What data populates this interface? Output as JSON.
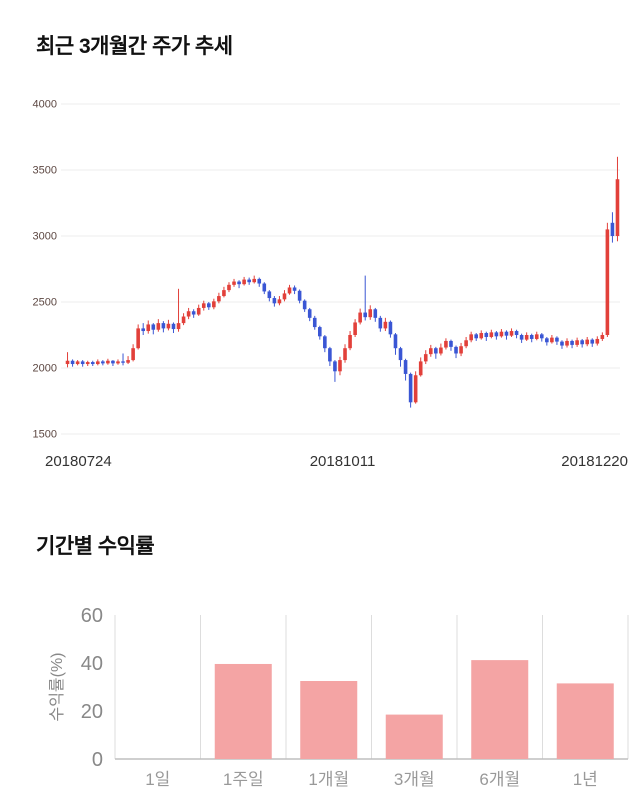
{
  "chart_data": [
    {
      "type": "candlestick",
      "title": "최근 3개월간 주가 추세",
      "ylim": [
        1500,
        4000
      ],
      "y_ticks": [
        4000,
        3500,
        3000,
        2500,
        2000,
        1500
      ],
      "x_labels": [
        "20180724",
        "20181011",
        "20181220"
      ],
      "grid": true,
      "up_color": "#e2403a",
      "down_color": "#3a56d4",
      "grid_color": "#ececec",
      "y_tick_color": "#5c4742",
      "x_label_color": "#333333",
      "candle_format": [
        "open",
        "close",
        "high",
        "low"
      ],
      "candles": [
        [
          2030,
          2055,
          2120,
          2005
        ],
        [
          2055,
          2030,
          2065,
          2010
        ],
        [
          2030,
          2050,
          2060,
          2020
        ],
        [
          2050,
          2030,
          2060,
          2010
        ],
        [
          2030,
          2045,
          2055,
          2015
        ],
        [
          2045,
          2030,
          2055,
          2015
        ],
        [
          2030,
          2050,
          2065,
          2020
        ],
        [
          2050,
          2035,
          2060,
          2020
        ],
        [
          2035,
          2055,
          2070,
          2025
        ],
        [
          2055,
          2035,
          2060,
          2015
        ],
        [
          2035,
          2050,
          2065,
          2025
        ],
        [
          2050,
          2040,
          2110,
          2020
        ],
        [
          2040,
          2060,
          2090,
          2030
        ],
        [
          2060,
          2150,
          2180,
          2050
        ],
        [
          2150,
          2300,
          2330,
          2140
        ],
        [
          2300,
          2280,
          2340,
          2250
        ],
        [
          2280,
          2330,
          2360,
          2260
        ],
        [
          2330,
          2290,
          2340,
          2255
        ],
        [
          2290,
          2340,
          2370,
          2275
        ],
        [
          2340,
          2300,
          2355,
          2270
        ],
        [
          2300,
          2335,
          2365,
          2285
        ],
        [
          2335,
          2295,
          2345,
          2265
        ],
        [
          2295,
          2340,
          2600,
          2275
        ],
        [
          2340,
          2390,
          2415,
          2325
        ],
        [
          2390,
          2430,
          2455,
          2370
        ],
        [
          2430,
          2405,
          2445,
          2380
        ],
        [
          2405,
          2455,
          2480,
          2395
        ],
        [
          2455,
          2490,
          2510,
          2435
        ],
        [
          2490,
          2460,
          2500,
          2440
        ],
        [
          2460,
          2505,
          2525,
          2445
        ],
        [
          2505,
          2545,
          2570,
          2490
        ],
        [
          2545,
          2590,
          2615,
          2535
        ],
        [
          2590,
          2630,
          2650,
          2575
        ],
        [
          2630,
          2655,
          2675,
          2615
        ],
        [
          2655,
          2635,
          2665,
          2605
        ],
        [
          2635,
          2670,
          2690,
          2625
        ],
        [
          2670,
          2650,
          2685,
          2630
        ],
        [
          2650,
          2675,
          2700,
          2640
        ],
        [
          2675,
          2640,
          2685,
          2615
        ],
        [
          2640,
          2580,
          2650,
          2560
        ],
        [
          2580,
          2530,
          2590,
          2505
        ],
        [
          2530,
          2490,
          2545,
          2465
        ],
        [
          2490,
          2520,
          2545,
          2475
        ],
        [
          2520,
          2565,
          2590,
          2505
        ],
        [
          2565,
          2610,
          2630,
          2555
        ],
        [
          2610,
          2585,
          2625,
          2560
        ],
        [
          2585,
          2510,
          2595,
          2490
        ],
        [
          2510,
          2445,
          2520,
          2425
        ],
        [
          2445,
          2380,
          2455,
          2355
        ],
        [
          2380,
          2310,
          2395,
          2290
        ],
        [
          2310,
          2240,
          2320,
          2215
        ],
        [
          2240,
          2150,
          2250,
          2120
        ],
        [
          2150,
          2050,
          2160,
          2015
        ],
        [
          2050,
          1975,
          2060,
          1895
        ],
        [
          1975,
          2060,
          2085,
          1945
        ],
        [
          2060,
          2150,
          2180,
          2040
        ],
        [
          2150,
          2250,
          2280,
          2135
        ],
        [
          2250,
          2345,
          2370,
          2235
        ],
        [
          2345,
          2420,
          2450,
          2330
        ],
        [
          2420,
          2385,
          2700,
          2360
        ],
        [
          2385,
          2445,
          2475,
          2365
        ],
        [
          2445,
          2380,
          2455,
          2350
        ],
        [
          2380,
          2300,
          2395,
          2275
        ],
        [
          2300,
          2350,
          2380,
          2280
        ],
        [
          2350,
          2255,
          2360,
          2230
        ],
        [
          2255,
          2150,
          2265,
          2100
        ],
        [
          2150,
          2060,
          2160,
          2010
        ],
        [
          2060,
          1955,
          2070,
          1905
        ],
        [
          1955,
          1740,
          1965,
          1700
        ],
        [
          1740,
          1945,
          1975,
          1730
        ],
        [
          1945,
          2050,
          2080,
          1935
        ],
        [
          2050,
          2105,
          2135,
          2030
        ],
        [
          2105,
          2150,
          2175,
          2085
        ],
        [
          2150,
          2110,
          2160,
          2070
        ],
        [
          2110,
          2155,
          2185,
          2095
        ],
        [
          2155,
          2205,
          2225,
          2140
        ],
        [
          2205,
          2160,
          2215,
          2130
        ],
        [
          2160,
          2110,
          2170,
          2075
        ],
        [
          2110,
          2165,
          2190,
          2090
        ],
        [
          2165,
          2210,
          2235,
          2150
        ],
        [
          2210,
          2255,
          2275,
          2195
        ],
        [
          2255,
          2225,
          2265,
          2205
        ],
        [
          2225,
          2265,
          2285,
          2215
        ],
        [
          2265,
          2235,
          2275,
          2205
        ],
        [
          2235,
          2270,
          2290,
          2225
        ],
        [
          2270,
          2240,
          2280,
          2215
        ],
        [
          2240,
          2275,
          2295,
          2230
        ],
        [
          2275,
          2245,
          2285,
          2215
        ],
        [
          2245,
          2280,
          2300,
          2235
        ],
        [
          2280,
          2250,
          2290,
          2225
        ],
        [
          2250,
          2215,
          2260,
          2190
        ],
        [
          2215,
          2250,
          2270,
          2205
        ],
        [
          2250,
          2220,
          2260,
          2195
        ],
        [
          2220,
          2255,
          2275,
          2210
        ],
        [
          2255,
          2225,
          2265,
          2200
        ],
        [
          2225,
          2195,
          2235,
          2170
        ],
        [
          2195,
          2230,
          2250,
          2185
        ],
        [
          2230,
          2200,
          2240,
          2175
        ],
        [
          2200,
          2170,
          2210,
          2145
        ],
        [
          2170,
          2205,
          2225,
          2155
        ],
        [
          2205,
          2175,
          2215,
          2150
        ],
        [
          2175,
          2210,
          2230,
          2160
        ],
        [
          2210,
          2180,
          2220,
          2155
        ],
        [
          2180,
          2215,
          2235,
          2165
        ],
        [
          2215,
          2185,
          2225,
          2160
        ],
        [
          2185,
          2220,
          2240,
          2170
        ],
        [
          2220,
          2250,
          2270,
          2205
        ],
        [
          2250,
          3050,
          3100,
          2235
        ],
        [
          3100,
          3000,
          3180,
          2950
        ],
        [
          3000,
          3430,
          3600,
          2960
        ]
      ]
    },
    {
      "type": "bar",
      "title": "기간별 수익률",
      "ylabel": "수익률(%)",
      "categories": [
        "1일",
        "1주일",
        "1개월",
        "3개월",
        "6개월",
        "1년"
      ],
      "values": [
        0,
        39.6,
        32.5,
        18.5,
        41.2,
        31.5
      ],
      "ylim": [
        0,
        60
      ],
      "y_ticks": [
        60,
        40,
        20,
        0
      ],
      "grid": true,
      "legend": "none",
      "bar_color": "#f4a4a4",
      "grid_color": "#dddddd",
      "axis_line_color": "#bfbfbf",
      "tick_text_color": "#888888",
      "category_text_color": "#999999"
    }
  ]
}
